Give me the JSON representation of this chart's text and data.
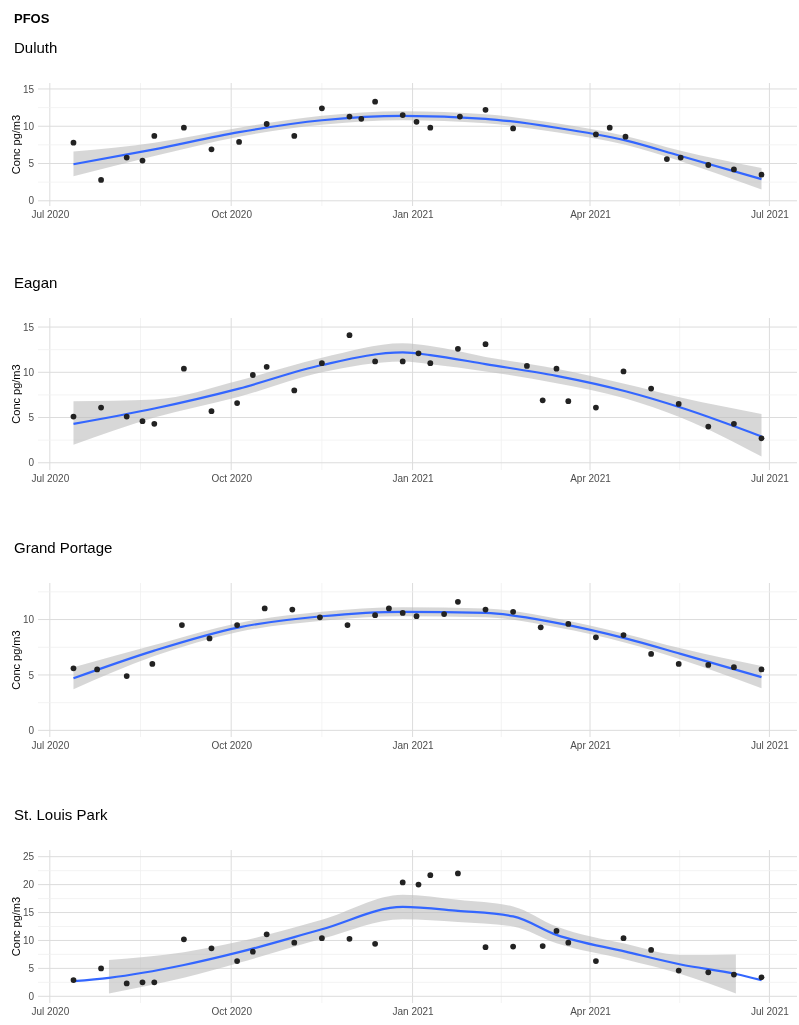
{
  "chart_data": [
    {
      "type": "scatter",
      "title": "PFOS",
      "subtitle": "Duluth",
      "ylabel": "Conc pg/m3",
      "grid": true,
      "xlim": [
        "2020-06-25",
        "2021-07-15"
      ],
      "ylim": [
        -0.7,
        15.8
      ],
      "yticks": [
        0,
        5,
        10,
        15
      ],
      "xticks": [
        {
          "value": "2020-07-01",
          "label": "Jul 2020"
        },
        {
          "value": "2020-10-01",
          "label": "Oct 2020"
        },
        {
          "value": "2021-01-01",
          "label": "Jan 2021"
        },
        {
          "value": "2021-04-01",
          "label": "Apr 2021"
        },
        {
          "value": "2021-07-01",
          "label": "Jul 2021"
        }
      ],
      "series": [
        {
          "color": "#222222",
          "x": [
            "2020-07-13",
            "2020-07-27",
            "2020-08-09",
            "2020-08-17",
            "2020-08-23",
            "2020-09-07",
            "2020-09-21",
            "2020-10-05",
            "2020-10-19",
            "2020-11-02",
            "2020-11-16",
            "2020-11-30",
            "2020-12-06",
            "2020-12-13",
            "2020-12-27",
            "2021-01-03",
            "2021-01-10",
            "2021-01-25",
            "2021-02-07",
            "2021-02-21",
            "2021-04-04",
            "2021-04-11",
            "2021-04-19",
            "2021-05-10",
            "2021-05-17",
            "2021-05-31",
            "2021-06-13",
            "2021-06-27"
          ],
          "values": [
            7.8,
            2.8,
            5.8,
            5.4,
            8.7,
            9.8,
            6.9,
            7.9,
            10.3,
            8.7,
            12.4,
            11.3,
            11.0,
            13.3,
            11.5,
            10.6,
            9.8,
            11.3,
            12.2,
            9.7,
            8.9,
            9.8,
            8.6,
            5.6,
            5.8,
            4.8,
            4.2,
            3.5
          ]
        },
        {
          "type": "line",
          "color": "#3366ff",
          "x": [
            "2020-07-13",
            "2020-08-23",
            "2020-10-05",
            "2020-11-16",
            "2020-12-27",
            "2021-02-07",
            "2021-03-15",
            "2021-04-19",
            "2021-05-17",
            "2021-06-27"
          ],
          "values": [
            4.9,
            6.9,
            9.2,
            10.8,
            11.4,
            11.0,
            9.8,
            8.1,
            6.0,
            2.9
          ],
          "lower": [
            3.3,
            6.0,
            8.6,
            10.2,
            10.8,
            10.4,
            9.2,
            7.5,
            5.3,
            1.5
          ],
          "upper": [
            6.6,
            7.8,
            9.8,
            11.4,
            12.0,
            11.6,
            10.4,
            8.7,
            6.7,
            4.4
          ]
        }
      ]
    },
    {
      "type": "scatter",
      "subtitle": "Eagan",
      "ylabel": "Conc pg/m3",
      "grid": true,
      "xlim": [
        "2020-06-25",
        "2021-07-15"
      ],
      "ylim": [
        -0.8,
        16
      ],
      "yticks": [
        0,
        5,
        10,
        15
      ],
      "xticks": [
        {
          "value": "2020-07-01",
          "label": "Jul 2020"
        },
        {
          "value": "2020-10-01",
          "label": "Oct 2020"
        },
        {
          "value": "2021-01-01",
          "label": "Jan 2021"
        },
        {
          "value": "2021-04-01",
          "label": "Apr 2021"
        },
        {
          "value": "2021-07-01",
          "label": "Jul 2021"
        }
      ],
      "series": [
        {
          "color": "#222222",
          "x": [
            "2020-07-13",
            "2020-07-27",
            "2020-08-09",
            "2020-08-17",
            "2020-08-23",
            "2020-09-07",
            "2020-09-21",
            "2020-10-04",
            "2020-10-12",
            "2020-10-19",
            "2020-11-02",
            "2020-11-16",
            "2020-11-30",
            "2020-12-13",
            "2020-12-27",
            "2021-01-04",
            "2021-01-10",
            "2021-01-24",
            "2021-02-07",
            "2021-02-28",
            "2021-03-08",
            "2021-03-15",
            "2021-03-21",
            "2021-04-04",
            "2021-04-18",
            "2021-05-02",
            "2021-05-16",
            "2021-05-31",
            "2021-06-13",
            "2021-06-27"
          ],
          "values": [
            5.1,
            6.1,
            5.1,
            4.6,
            4.3,
            10.4,
            5.7,
            6.6,
            9.7,
            10.6,
            8.0,
            11.0,
            14.1,
            11.2,
            11.2,
            12.1,
            11.0,
            12.6,
            13.1,
            10.7,
            6.9,
            10.4,
            6.8,
            6.1,
            10.1,
            8.2,
            6.5,
            4.0,
            4.3,
            2.7
          ]
        },
        {
          "type": "line",
          "color": "#3366ff",
          "x": [
            "2020-07-13",
            "2020-08-23",
            "2020-10-05",
            "2020-11-16",
            "2020-12-27",
            "2021-01-10",
            "2021-02-07",
            "2021-03-15",
            "2021-04-19",
            "2021-05-17",
            "2021-06-27"
          ],
          "values": [
            4.3,
            6.0,
            8.2,
            10.8,
            12.2,
            11.9,
            10.9,
            9.6,
            7.9,
            6.1,
            2.9
          ],
          "lower": [
            2.0,
            5.0,
            7.3,
            10.0,
            11.2,
            10.9,
            10.1,
            8.8,
            7.1,
            5.0,
            0.7
          ],
          "upper": [
            6.8,
            7.0,
            9.1,
            11.6,
            13.2,
            12.9,
            11.7,
            10.4,
            8.7,
            7.2,
            5.4
          ]
        }
      ]
    },
    {
      "type": "scatter",
      "subtitle": "Grand Portage",
      "ylabel": "Conc pg/m3",
      "grid": true,
      "xlim": [
        "2020-06-25",
        "2021-07-15"
      ],
      "ylim": [
        -0.6,
        13.3
      ],
      "yticks": [
        0,
        5,
        10
      ],
      "xticks": [
        {
          "value": "2020-07-01",
          "label": "Jul 2020"
        },
        {
          "value": "2020-10-01",
          "label": "Oct 2020"
        },
        {
          "value": "2021-01-01",
          "label": "Jan 2021"
        },
        {
          "value": "2021-04-01",
          "label": "Apr 2021"
        },
        {
          "value": "2021-07-01",
          "label": "Jul 2021"
        }
      ],
      "series": [
        {
          "color": "#222222",
          "x": [
            "2020-07-13",
            "2020-07-25",
            "2020-08-09",
            "2020-08-22",
            "2020-09-06",
            "2020-09-20",
            "2020-10-04",
            "2020-10-18",
            "2020-11-01",
            "2020-11-15",
            "2020-11-29",
            "2020-12-13",
            "2020-12-20",
            "2020-12-27",
            "2021-01-03",
            "2021-01-17",
            "2021-01-24",
            "2021-02-07",
            "2021-02-21",
            "2021-03-07",
            "2021-03-21",
            "2021-04-04",
            "2021-04-18",
            "2021-05-02",
            "2021-05-16",
            "2021-05-31",
            "2021-06-13",
            "2021-06-27"
          ],
          "values": [
            5.6,
            5.5,
            4.9,
            6.0,
            9.5,
            8.3,
            9.5,
            11.0,
            10.9,
            10.2,
            9.5,
            10.4,
            11.0,
            10.6,
            10.3,
            10.5,
            11.6,
            10.9,
            10.7,
            9.3,
            9.6,
            8.4,
            8.6,
            6.9,
            6.0,
            5.9,
            5.7,
            5.5
          ]
        },
        {
          "type": "line",
          "color": "#3366ff",
          "x": [
            "2020-07-13",
            "2020-08-23",
            "2020-10-05",
            "2020-11-16",
            "2020-12-27",
            "2021-02-07",
            "2021-03-15",
            "2021-04-19",
            "2021-05-17",
            "2021-06-27"
          ],
          "values": [
            4.7,
            7.2,
            9.3,
            10.3,
            10.7,
            10.6,
            9.7,
            8.3,
            6.9,
            4.8
          ],
          "lower": [
            3.7,
            6.7,
            8.9,
            9.9,
            10.3,
            10.2,
            9.3,
            7.9,
            6.4,
            3.8
          ],
          "upper": [
            5.7,
            7.7,
            9.7,
            10.7,
            11.1,
            11.0,
            10.1,
            8.7,
            7.4,
            5.8
          ]
        }
      ]
    },
    {
      "type": "scatter",
      "subtitle": "St. Louis Park",
      "ylabel": "Conc pg/m3",
      "grid": true,
      "xlim": [
        "2020-06-25",
        "2021-07-15"
      ],
      "ylim": [
        -1.2,
        26.2
      ],
      "yticks": [
        0,
        5,
        10,
        15,
        20,
        25
      ],
      "xticks": [
        {
          "value": "2020-07-01",
          "label": "Jul 2020"
        },
        {
          "value": "2020-10-01",
          "label": "Oct 2020"
        },
        {
          "value": "2021-01-01",
          "label": "Jan 2021"
        },
        {
          "value": "2021-04-01",
          "label": "Apr 2021"
        },
        {
          "value": "2021-07-01",
          "label": "Jul 2021"
        }
      ],
      "series": [
        {
          "color": "#222222",
          "x": [
            "2020-07-13",
            "2020-07-27",
            "2020-08-09",
            "2020-08-17",
            "2020-08-23",
            "2020-09-07",
            "2020-09-21",
            "2020-10-04",
            "2020-10-12",
            "2020-10-19",
            "2020-11-02",
            "2020-11-16",
            "2020-11-30",
            "2020-12-13",
            "2020-12-27",
            "2021-01-04",
            "2021-01-10",
            "2021-01-24",
            "2021-02-07",
            "2021-02-21",
            "2021-03-08",
            "2021-03-15",
            "2021-03-21",
            "2021-04-04",
            "2021-04-18",
            "2021-05-02",
            "2021-05-16",
            "2021-05-31",
            "2021-06-13",
            "2021-06-27"
          ],
          "values": [
            2.9,
            5.0,
            2.3,
            2.5,
            2.5,
            10.2,
            8.6,
            6.3,
            8.0,
            11.1,
            9.6,
            10.4,
            10.3,
            9.4,
            20.4,
            20.0,
            21.7,
            22.0,
            8.8,
            8.9,
            9.0,
            11.7,
            9.6,
            6.3,
            10.4,
            8.3,
            4.6,
            4.3,
            3.9,
            3.4
          ]
        },
        {
          "type": "line",
          "color": "#3366ff",
          "x": [
            "2020-07-13",
            "2020-07-31",
            "2020-09-07",
            "2020-10-05",
            "2020-11-16",
            "2020-12-27",
            "2021-01-24",
            "2021-02-21",
            "2021-03-15",
            "2021-04-19",
            "2021-05-17",
            "2021-06-14",
            "2021-06-27"
          ],
          "values": [
            2.7,
            3.3,
            5.6,
            7.9,
            12.0,
            16.0,
            15.3,
            14.3,
            11.0,
            8.0,
            5.7,
            4.0,
            2.9
          ],
          "lower": [
            null,
            0.5,
            3.3,
            6.0,
            10.3,
            13.8,
            13.3,
            12.5,
            9.5,
            6.6,
            4.0,
            0.5,
            null
          ],
          "upper": [
            null,
            6.5,
            7.9,
            9.8,
            13.7,
            18.2,
            17.3,
            16.1,
            12.5,
            9.4,
            7.4,
            7.5,
            null
          ]
        }
      ]
    }
  ]
}
